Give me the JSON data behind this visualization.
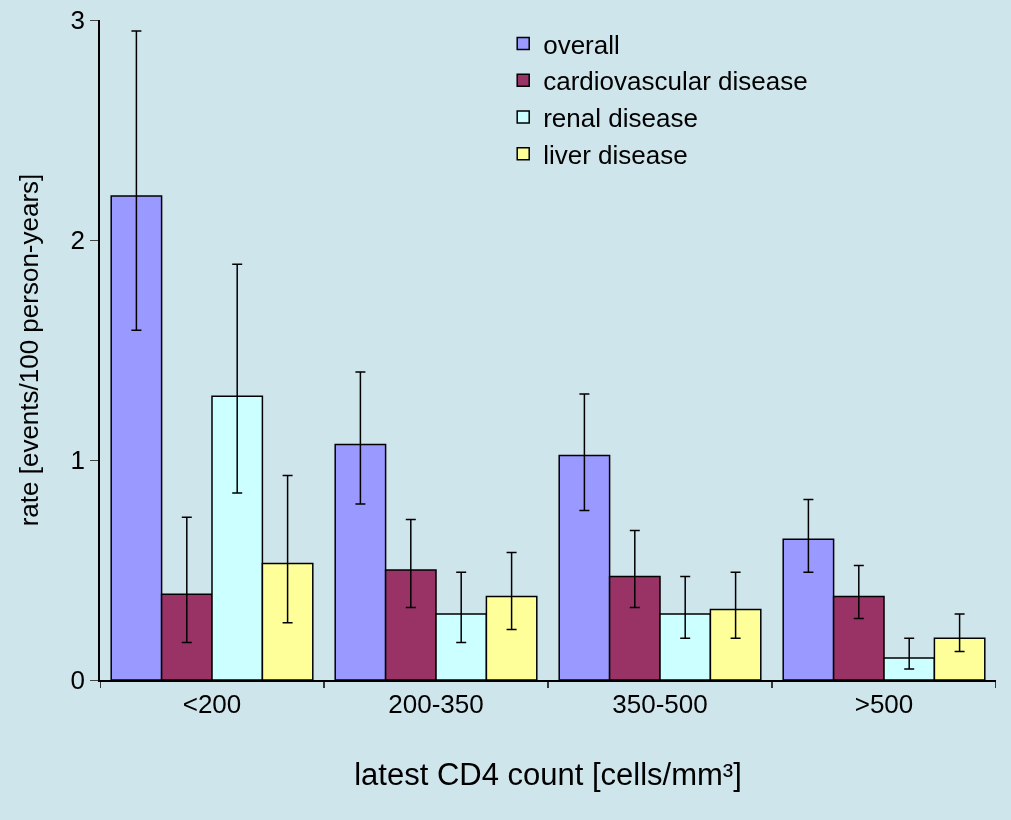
{
  "chart_data": {
    "type": "bar",
    "xlabel": "latest CD4 count [cells/mm³]",
    "ylabel": "rate [events/100 person-years]",
    "categories": [
      "<200",
      "200-350",
      "350-500",
      ">500"
    ],
    "series": [
      {
        "name": "overall",
        "color": "#9999ff",
        "values": [
          2.2,
          1.07,
          1.02,
          0.64
        ],
        "errors": [
          [
            1.59,
            2.95
          ],
          [
            0.8,
            1.4
          ],
          [
            0.77,
            1.3
          ],
          [
            0.49,
            0.82
          ]
        ]
      },
      {
        "name": "cardiovascular disease",
        "color": "#993366",
        "values": [
          0.39,
          0.5,
          0.47,
          0.38
        ],
        "errors": [
          [
            0.17,
            0.74
          ],
          [
            0.33,
            0.73
          ],
          [
            0.33,
            0.68
          ],
          [
            0.28,
            0.52
          ]
        ]
      },
      {
        "name": "renal disease",
        "color": "#ccffff",
        "values": [
          1.29,
          0.3,
          0.3,
          0.1
        ],
        "errors": [
          [
            0.85,
            1.89
          ],
          [
            0.17,
            0.49
          ],
          [
            0.19,
            0.47
          ],
          [
            0.05,
            0.19
          ]
        ]
      },
      {
        "name": "liver disease",
        "color": "#ffff99",
        "values": [
          0.53,
          0.38,
          0.32,
          0.19
        ],
        "errors": [
          [
            0.26,
            0.93
          ],
          [
            0.23,
            0.58
          ],
          [
            0.19,
            0.49
          ],
          [
            0.13,
            0.3
          ]
        ]
      }
    ],
    "ylim": [
      0,
      3
    ],
    "yticks": [
      0,
      1,
      2,
      3
    ],
    "grid": false,
    "legend": "top right"
  }
}
